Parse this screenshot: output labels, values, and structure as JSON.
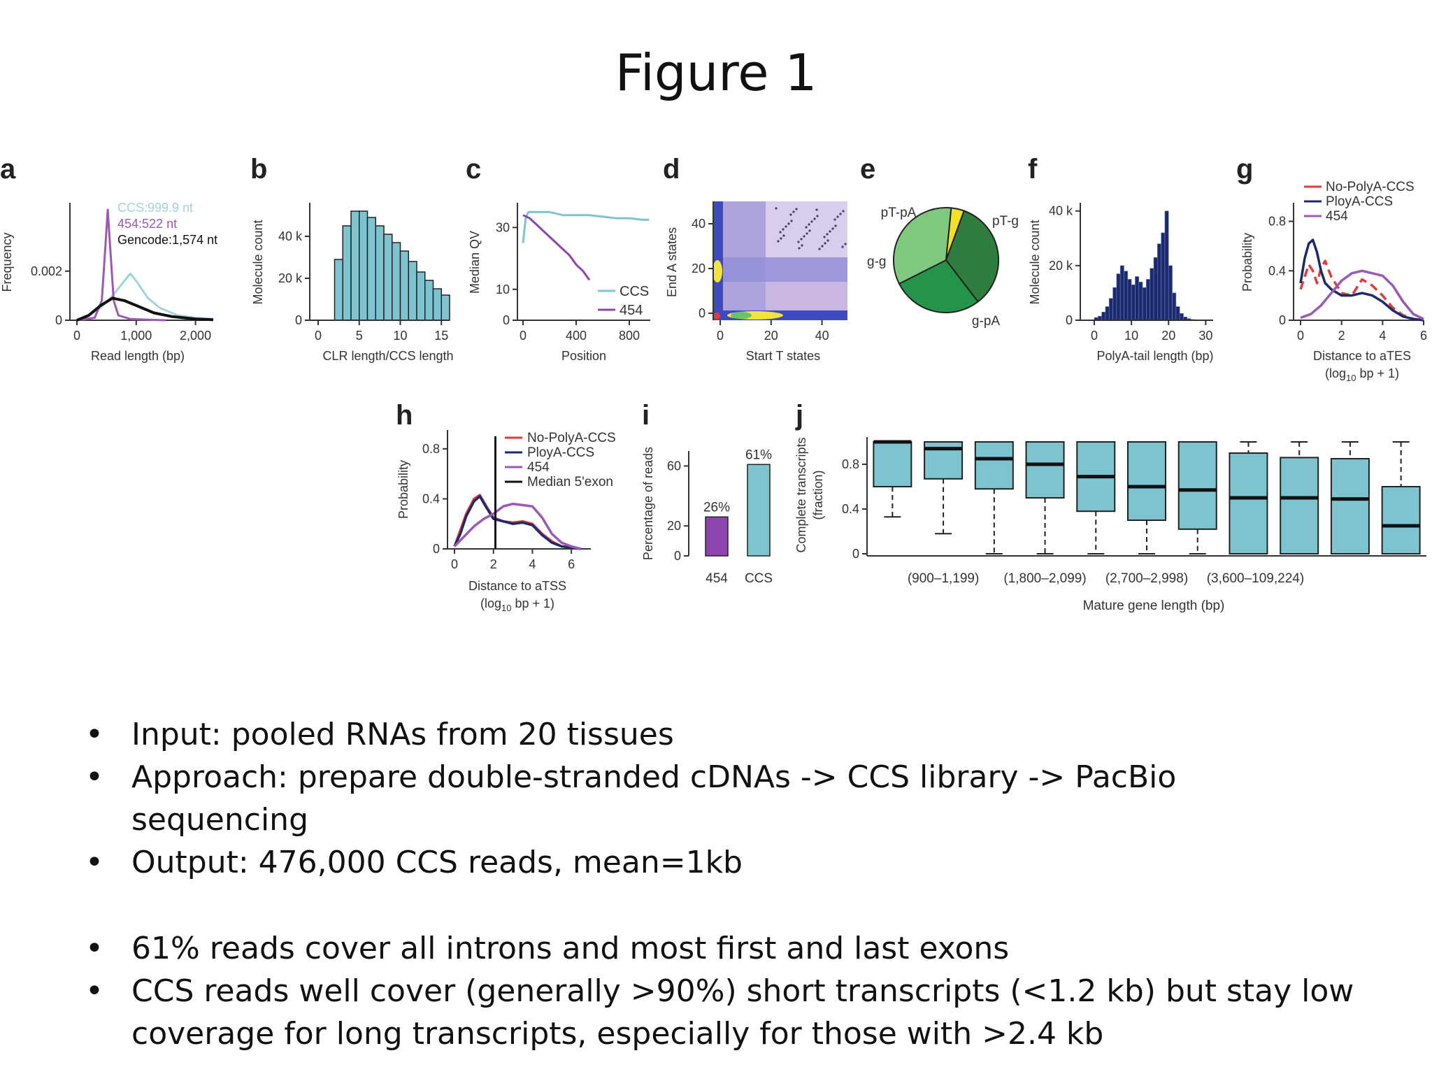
{
  "slide": {
    "title": "Figure 1"
  },
  "panels": {
    "a": {
      "letter": "a"
    },
    "b": {
      "letter": "b"
    },
    "c": {
      "letter": "c"
    },
    "d": {
      "letter": "d"
    },
    "e": {
      "letter": "e"
    },
    "f": {
      "letter": "f"
    },
    "g": {
      "letter": "g"
    },
    "h": {
      "letter": "h"
    },
    "i": {
      "letter": "i"
    },
    "j": {
      "letter": "j"
    }
  },
  "chart_data": [
    {
      "panel": "a",
      "type": "line",
      "xlabel": "Read length (bp)",
      "ylabel": "Frequency",
      "xticks": [
        "0",
        "1,000",
        "2,000"
      ],
      "yticks": [
        "0",
        "0.002"
      ],
      "xlim": [
        0,
        2300
      ],
      "annotations": [
        "CCS:999.9 nt",
        "454:522 nt",
        "Gencode:1,574 nt"
      ],
      "series": [
        {
          "name": "CCS:999.9 nt",
          "color": "#9fd4dc",
          "x": [
            0,
            200,
            400,
            600,
            800,
            900,
            1000,
            1200,
            1400,
            1700,
            2000,
            2300
          ],
          "y": [
            0,
            0.0002,
            0.0005,
            0.001,
            0.0016,
            0.0019,
            0.0016,
            0.0009,
            0.0005,
            0.0002,
            0.0001,
            5e-05
          ]
        },
        {
          "name": "454:522 nt",
          "color": "#9b59b6",
          "x": [
            0,
            300,
            420,
            480,
            520,
            560,
            620,
            700,
            900,
            1200,
            1500
          ],
          "y": [
            0,
            0.0001,
            0.0008,
            0.003,
            0.0045,
            0.003,
            0.0008,
            0.0002,
            5e-05,
            2e-05,
            0
          ]
        },
        {
          "name": "Gencode:1,574 nt",
          "color": "#111111",
          "x": [
            0,
            200,
            400,
            600,
            800,
            1000,
            1300,
            1600,
            2000,
            2300
          ],
          "y": [
            0,
            0.0002,
            0.0006,
            0.0009,
            0.0008,
            0.0006,
            0.0003,
            0.00015,
            5e-05,
            2e-05
          ]
        }
      ]
    },
    {
      "panel": "b",
      "type": "bar",
      "xlabel": "CLR length/CCS length",
      "ylabel": "Molecule count",
      "xticks": [
        "0",
        "5",
        "10",
        "15"
      ],
      "yticks": [
        "0",
        "20 k",
        "40 k"
      ],
      "ylim": [
        0,
        56000
      ],
      "bins_start": 2,
      "bin_width": 1,
      "values": [
        29000,
        45000,
        52000,
        52000,
        49000,
        45000,
        41000,
        37000,
        33000,
        28000,
        23000,
        19000,
        15000,
        12000
      ],
      "color": "#7ec4d0"
    },
    {
      "panel": "c",
      "type": "line",
      "xlabel": "Position",
      "ylabel": "Median QV",
      "xticks": [
        "0",
        "400",
        "800"
      ],
      "yticks": [
        "0",
        "10",
        "30"
      ],
      "xlim": [
        0,
        1000
      ],
      "ylim": [
        0,
        38
      ],
      "series": [
        {
          "name": "CCS",
          "color": "#7ec4d0",
          "x": [
            0,
            20,
            40,
            60,
            100,
            200,
            300,
            400,
            500,
            600,
            700,
            800,
            900,
            950
          ],
          "y": [
            25,
            33,
            35,
            35,
            35,
            35,
            34,
            34,
            34,
            33.5,
            33,
            33,
            32.5,
            32.5
          ]
        },
        {
          "name": "454",
          "color": "#8e44ad",
          "x": [
            0,
            50,
            100,
            150,
            200,
            250,
            300,
            350,
            400,
            450,
            500
          ],
          "y": [
            34,
            33,
            31,
            29,
            27,
            25,
            23,
            21,
            18,
            16,
            13
          ]
        }
      ]
    },
    {
      "panel": "d",
      "type": "heatmap",
      "xlabel": "Start T states",
      "ylabel": "End A states",
      "xticks": [
        "0",
        "20",
        "40"
      ],
      "yticks": [
        "0",
        "20",
        "40"
      ],
      "xlim": [
        0,
        50
      ],
      "ylim": [
        0,
        50
      ]
    },
    {
      "panel": "e",
      "type": "pie",
      "labels": [
        "pT-g",
        "g-pA",
        "g-g",
        "pT-pA"
      ],
      "values": [
        34,
        28,
        34,
        4
      ],
      "colors": [
        "#2e7d3e",
        "#239449",
        "#7fc97f",
        "#f2e127"
      ]
    },
    {
      "panel": "f",
      "type": "bar",
      "xlabel": "PolyA-tail length (bp)",
      "ylabel": "Molecule count",
      "xticks": [
        "0",
        "10",
        "20",
        "30"
      ],
      "yticks": [
        "0",
        "20 k",
        "40 k"
      ],
      "ylim": [
        0,
        43000
      ],
      "bins_start": 0,
      "bin_width": 1,
      "values": [
        1000,
        1500,
        3000,
        5000,
        8000,
        12000,
        17000,
        20000,
        18000,
        15000,
        13000,
        16000,
        14000,
        12000,
        15000,
        19000,
        23000,
        28000,
        32000,
        40000,
        20000,
        10000,
        5000,
        2500,
        1200,
        600,
        300,
        100,
        50,
        20
      ],
      "color": "#1b2a6b"
    },
    {
      "panel": "g",
      "type": "line",
      "xlabel": "Distance to aTES",
      "xlabel2": "(log10 bp + 1)",
      "ylabel": "Probability",
      "xticks": [
        "0",
        "2",
        "4",
        "6"
      ],
      "yticks": [
        "0",
        "0.4",
        "0.8"
      ],
      "xlim": [
        0,
        6
      ],
      "ylim": [
        0,
        0.95
      ],
      "series": [
        {
          "name": "No-PolyA-CCS",
          "color": "#e23b3b",
          "x": [
            0,
            0.2,
            0.4,
            0.6,
            0.8,
            1,
            1.2,
            1.5,
            2,
            2.5,
            3,
            3.5,
            4,
            4.5,
            5,
            5.5,
            6
          ],
          "y": [
            0.25,
            0.35,
            0.45,
            0.4,
            0.3,
            0.42,
            0.48,
            0.35,
            0.22,
            0.2,
            0.33,
            0.28,
            0.2,
            0.1,
            0.04,
            0.01,
            0
          ]
        },
        {
          "name": "PloyA-CCS",
          "color": "#1b2a6b",
          "x": [
            0,
            0.2,
            0.4,
            0.6,
            0.8,
            1,
            1.2,
            1.5,
            2,
            2.5,
            3,
            3.5,
            4,
            4.5,
            5,
            5.5,
            6
          ],
          "y": [
            0.3,
            0.5,
            0.62,
            0.65,
            0.55,
            0.4,
            0.3,
            0.25,
            0.2,
            0.2,
            0.22,
            0.2,
            0.15,
            0.08,
            0.03,
            0.01,
            0
          ]
        },
        {
          "name": "454",
          "color": "#9b59b6",
          "x": [
            0,
            0.5,
            1,
            1.5,
            2,
            2.5,
            3,
            3.5,
            4,
            4.5,
            5,
            5.5,
            6
          ],
          "y": [
            0.02,
            0.05,
            0.12,
            0.22,
            0.32,
            0.38,
            0.4,
            0.38,
            0.36,
            0.28,
            0.15,
            0.05,
            0.01
          ]
        }
      ]
    },
    {
      "panel": "h",
      "type": "line",
      "xlabel": "Distance to aTSS",
      "xlabel2": "(log10 bp + 1)",
      "ylabel": "Probability",
      "xticks": [
        "0",
        "2",
        "4",
        "6"
      ],
      "yticks": [
        "0",
        "0.4",
        "0.8"
      ],
      "xlim": [
        0,
        7
      ],
      "ylim": [
        0,
        0.95
      ],
      "median_5exon": 2.1,
      "series": [
        {
          "name": "No-PolyA-CCS",
          "color": "#e23b3b",
          "x": [
            0,
            0.3,
            0.6,
            1,
            1.3,
            1.6,
            2,
            2.5,
            3,
            3.5,
            4,
            4.5,
            5,
            5.5,
            6,
            6.5
          ],
          "y": [
            0.02,
            0.15,
            0.28,
            0.4,
            0.43,
            0.35,
            0.25,
            0.22,
            0.21,
            0.22,
            0.2,
            0.12,
            0.06,
            0.02,
            0.01,
            0
          ]
        },
        {
          "name": "PloyA-CCS",
          "color": "#1b2a6b",
          "x": [
            0,
            0.3,
            0.6,
            1,
            1.3,
            1.6,
            2,
            2.5,
            3,
            3.5,
            4,
            4.5,
            5,
            5.5,
            6,
            6.5
          ],
          "y": [
            0.02,
            0.12,
            0.26,
            0.38,
            0.42,
            0.34,
            0.24,
            0.22,
            0.2,
            0.21,
            0.19,
            0.11,
            0.05,
            0.02,
            0.01,
            0
          ]
        },
        {
          "name": "454",
          "color": "#9b59b6",
          "x": [
            0,
            0.5,
            1,
            1.5,
            2,
            2.5,
            3,
            3.5,
            4,
            4.5,
            5,
            5.5,
            6,
            6.5
          ],
          "y": [
            0.02,
            0.1,
            0.18,
            0.24,
            0.28,
            0.34,
            0.36,
            0.35,
            0.34,
            0.25,
            0.12,
            0.05,
            0.02,
            0
          ]
        },
        {
          "name": "Median 5'exon",
          "color": "#111111",
          "x": [
            2.1,
            2.1
          ],
          "y": [
            0,
            0.9
          ]
        }
      ]
    },
    {
      "panel": "i",
      "type": "bar",
      "ylabel": "Percentage of reads",
      "categories": [
        "454",
        "CCS"
      ],
      "values": [
        26,
        61
      ],
      "data_labels": [
        "26%",
        "61%"
      ],
      "yticks": [
        "0",
        "20",
        "60"
      ],
      "ylim": [
        0,
        70
      ],
      "colors": [
        "#8e44ad",
        "#7ec4d0"
      ]
    },
    {
      "panel": "j",
      "type": "box",
      "xlabel": "Mature gene length (bp)",
      "ylabel": "Complete transcripts",
      "ylabel2": "(fraction)",
      "yticks": [
        "0",
        "0.4",
        "0.8"
      ],
      "ylim": [
        0,
        1
      ],
      "shown_category_labels": [
        "(900–1,199)",
        "(1,800–2,099)",
        "(2,700–2,998)",
        "(3,600–109,224)"
      ],
      "label_positions": [
        1,
        3,
        5,
        7
      ],
      "boxes": [
        {
          "q1": 0.6,
          "median": 1.0,
          "q3": 1.0,
          "low": 0.33,
          "high": 1.0
        },
        {
          "q1": 0.67,
          "median": 0.94,
          "q3": 1.0,
          "low": 0.18,
          "high": 1.0
        },
        {
          "q1": 0.58,
          "median": 0.85,
          "q3": 1.0,
          "low": 0.0,
          "high": 1.0
        },
        {
          "q1": 0.5,
          "median": 0.8,
          "q3": 1.0,
          "low": 0.0,
          "high": 1.0
        },
        {
          "q1": 0.38,
          "median": 0.69,
          "q3": 1.0,
          "low": 0.0,
          "high": 1.0
        },
        {
          "q1": 0.3,
          "median": 0.6,
          "q3": 1.0,
          "low": 0.0,
          "high": 1.0
        },
        {
          "q1": 0.22,
          "median": 0.57,
          "q3": 1.0,
          "low": 0.0,
          "high": 1.0
        },
        {
          "q1": 0.0,
          "median": 0.5,
          "q3": 0.9,
          "low": 0.0,
          "high": 1.0
        },
        {
          "q1": 0.0,
          "median": 0.5,
          "q3": 0.86,
          "low": 0.0,
          "high": 1.0
        },
        {
          "q1": 0.0,
          "median": 0.49,
          "q3": 0.85,
          "low": 0.0,
          "high": 1.0
        },
        {
          "q1": 0.0,
          "median": 0.25,
          "q3": 0.6,
          "low": 0.0,
          "high": 1.0
        }
      ],
      "color": "#7ec4d0"
    }
  ],
  "bullets": [
    "Input: pooled RNAs from 20 tissues",
    "Approach: prepare double-stranded cDNAs -> CCS library -> PacBio sequencing",
    "Output: 476,000 CCS reads, mean=1kb",
    "61% reads cover all introns and most first and last exons",
    "CCS reads well cover (generally >90%) short transcripts (<1.2 kb) but stay low coverage for long transcripts, especially for those with >2.4 kb"
  ],
  "bullet_glyph": "•"
}
